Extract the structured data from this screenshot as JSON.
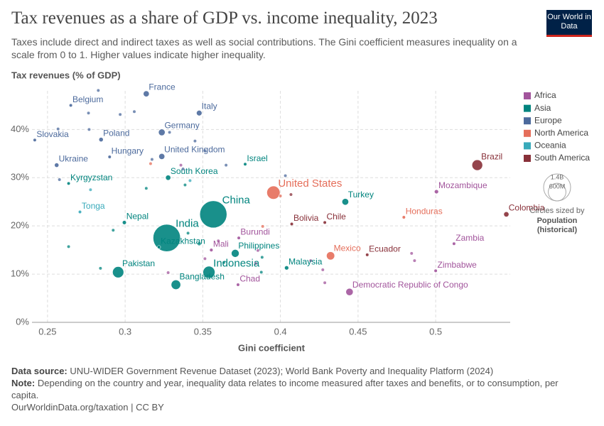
{
  "chart_data": {
    "type": "scatter",
    "title": "Tax revenues as a share of GDP vs. income inequality, 2023",
    "subtitle": "Taxes include direct and indirect taxes as well as social contributions. The Gini coefficient measures inequality on a scale from 0 to 1. Higher values indicate higher inequality.",
    "logo": "Our World in Data",
    "y_label": "Tax revenues (% of GDP)",
    "x_label": "Gini coefficient",
    "xlim": [
      0.24,
      0.548
    ],
    "ylim": [
      0,
      48
    ],
    "xticks": [
      0.25,
      0.3,
      0.35,
      0.4,
      0.45,
      0.5
    ],
    "yticks": [
      {
        "value": 0,
        "label": "0%"
      },
      {
        "value": 10,
        "label": "10%"
      },
      {
        "value": 20,
        "label": "20%"
      },
      {
        "value": 30,
        "label": "30%"
      },
      {
        "value": 40,
        "label": "40%"
      }
    ],
    "grid": true,
    "legend_position": "right",
    "size_legend": {
      "title": "Circles sized by",
      "measure": "Population (historical)",
      "values": [
        {
          "value": 1400000000,
          "label": "1.4B"
        },
        {
          "value": 600000000,
          "label": "600M"
        }
      ]
    },
    "series": [
      {
        "name": "Africa",
        "color": "#a2559c",
        "x": [
          0.5005,
          0.3732,
          0.3555,
          0.5118,
          0.5,
          0.3727,
          0.4445,
          0.3359,
          0.36,
          0.3855,
          0.3841,
          0.4195,
          0.4273,
          0.4286,
          0.3277,
          0.4845,
          0.4864,
          0.3514
        ],
        "y": [
          27.1,
          17.5,
          15.0,
          16.3,
          10.7,
          7.8,
          6.3,
          32.6,
          16.9,
          14.9,
          12.2,
          12.8,
          10.9,
          8.2,
          10.3,
          14.3,
          12.8,
          13.2
        ],
        "sizes": [
          33000000,
          13000000,
          23000000,
          20000000,
          16000000,
          18000000,
          102000000,
          10000000,
          10000000,
          10000000,
          10000000,
          10000000,
          10000000,
          10000000,
          10000000,
          10000000,
          10000000,
          10000000
        ],
        "labels": [
          "Mozambique",
          "Burundi",
          "Mali",
          "Zambia",
          "Zimbabwe",
          "Chad",
          "Democratic Republic of Congo",
          null,
          null,
          null,
          null,
          null,
          null,
          null,
          null,
          null,
          null,
          null
        ]
      },
      {
        "name": "Asia",
        "color": "#00847e",
        "x": [
          0.3773,
          0.3277,
          0.2636,
          0.3568,
          0.4418,
          0.2995,
          0.3268,
          0.3218,
          0.2955,
          0.3327,
          0.354,
          0.3709,
          0.404,
          0.2636,
          0.2923,
          0.2841,
          0.3136,
          0.3405,
          0.3477,
          0.3386,
          0.3882,
          0.3877,
          0.3636
        ],
        "y": [
          32.8,
          30.0,
          28.8,
          22.4,
          25.0,
          20.7,
          17.5,
          15.6,
          10.4,
          7.8,
          10.4,
          14.3,
          11.3,
          15.7,
          19.1,
          11.2,
          27.8,
          18.5,
          16.3,
          28.5,
          13.5,
          10.4,
          12.4
        ],
        "sizes": [
          9500000,
          52000000,
          7000000,
          1410000000,
          85000000,
          31000000,
          1430000000,
          20000000,
          240000000,
          172000000,
          277000000,
          117000000,
          34000000,
          10000000,
          10000000,
          10000000,
          10000000,
          10000000,
          30000000,
          10000000,
          10000000,
          10000000,
          10000000
        ],
        "labels": [
          "Israel",
          "South Korea",
          "Kyrgyzstan",
          "China",
          "Turkey",
          "Nepal",
          "India",
          "Kazakhstan",
          "Pakistan",
          "Bangladesh",
          "Indonesia",
          "Philippines",
          "Malaysia",
          null,
          null,
          null,
          null,
          null,
          null,
          null,
          null,
          null,
          null
        ]
      },
      {
        "name": "Europe",
        "color": "#4c6a9c",
        "x": [
          0.265,
          0.3136,
          0.3477,
          0.3236,
          0.2845,
          0.2418,
          0.29,
          0.3236,
          0.2559,
          0.2827,
          0.2764,
          0.2568,
          0.2768,
          0.3059,
          0.2968,
          0.3286,
          0.345,
          0.3173,
          0.365,
          0.2577,
          0.4032,
          0.3514,
          0.3373
        ],
        "y": [
          45.0,
          47.4,
          43.4,
          39.4,
          37.9,
          37.8,
          34.3,
          34.4,
          32.6,
          48.1,
          43.4,
          40.1,
          40.0,
          43.7,
          43.1,
          39.4,
          37.6,
          33.8,
          32.6,
          29.6,
          30.4,
          35.6,
          31.8
        ],
        "sizes": [
          11700000,
          68000000,
          59000000,
          84000000,
          37000000,
          5400000,
          9600000,
          68000000,
          37000000,
          10000000,
          10000000,
          10000000,
          10000000,
          10000000,
          10000000,
          10000000,
          10000000,
          10000000,
          10000000,
          10000000,
          10000000,
          10000000,
          10000000
        ],
        "labels": [
          "Belgium",
          "France",
          "Italy",
          "Germany",
          "Poland",
          "Slovakia",
          "Hungary",
          "United Kingdom",
          "Ukraine",
          null,
          null,
          null,
          null,
          null,
          null,
          null,
          null,
          null,
          null,
          null,
          null,
          null,
          null
        ]
      },
      {
        "name": "North America",
        "color": "#e56e5a",
        "x": [
          0.3955,
          0.4795,
          0.4323,
          0.3164,
          0.3886,
          0.4
        ],
        "y": [
          26.9,
          21.8,
          13.8,
          32.9,
          19.9,
          26.2
        ],
        "sizes": [
          335000000,
          10000000,
          128000000,
          10000000,
          10000000,
          10000000
        ],
        "labels": [
          "United States",
          "Honduras",
          "Mexico",
          null,
          null,
          null
        ]
      },
      {
        "name": "Oceania",
        "color": "#38aaba",
        "x": [
          0.2709,
          0.2777,
          0.3418
        ],
        "y": [
          22.9,
          27.5,
          29.4
        ],
        "sizes": [
          100000,
          10000000,
          10000000
        ],
        "labels": [
          "Tonga",
          null,
          null
        ]
      },
      {
        "name": "South America",
        "color": "#883039",
        "x": [
          0.5268,
          0.5455,
          0.4073,
          0.4286,
          0.4559,
          0.4068
        ],
        "y": [
          32.6,
          22.4,
          20.4,
          20.7,
          14.0,
          26.5
        ],
        "sizes": [
          216000000,
          52000000,
          12000000,
          19500000,
          18000000,
          10000000
        ],
        "labels": [
          "Brazil",
          "Colombia",
          "Bolivia",
          "Chile",
          "Ecuador",
          null
        ]
      }
    ],
    "source_label": "Data source:",
    "source": "UNU-WIDER Government Revenue Dataset (2023); World Bank Poverty and Inequality Platform (2024)",
    "note_label": "Note:",
    "note": "Depending on the country and year, inequality data relates to income measured after taxes and benefits, or to consumption, per capita.",
    "url": "OurWorldinData.org/taxation | CC BY"
  }
}
